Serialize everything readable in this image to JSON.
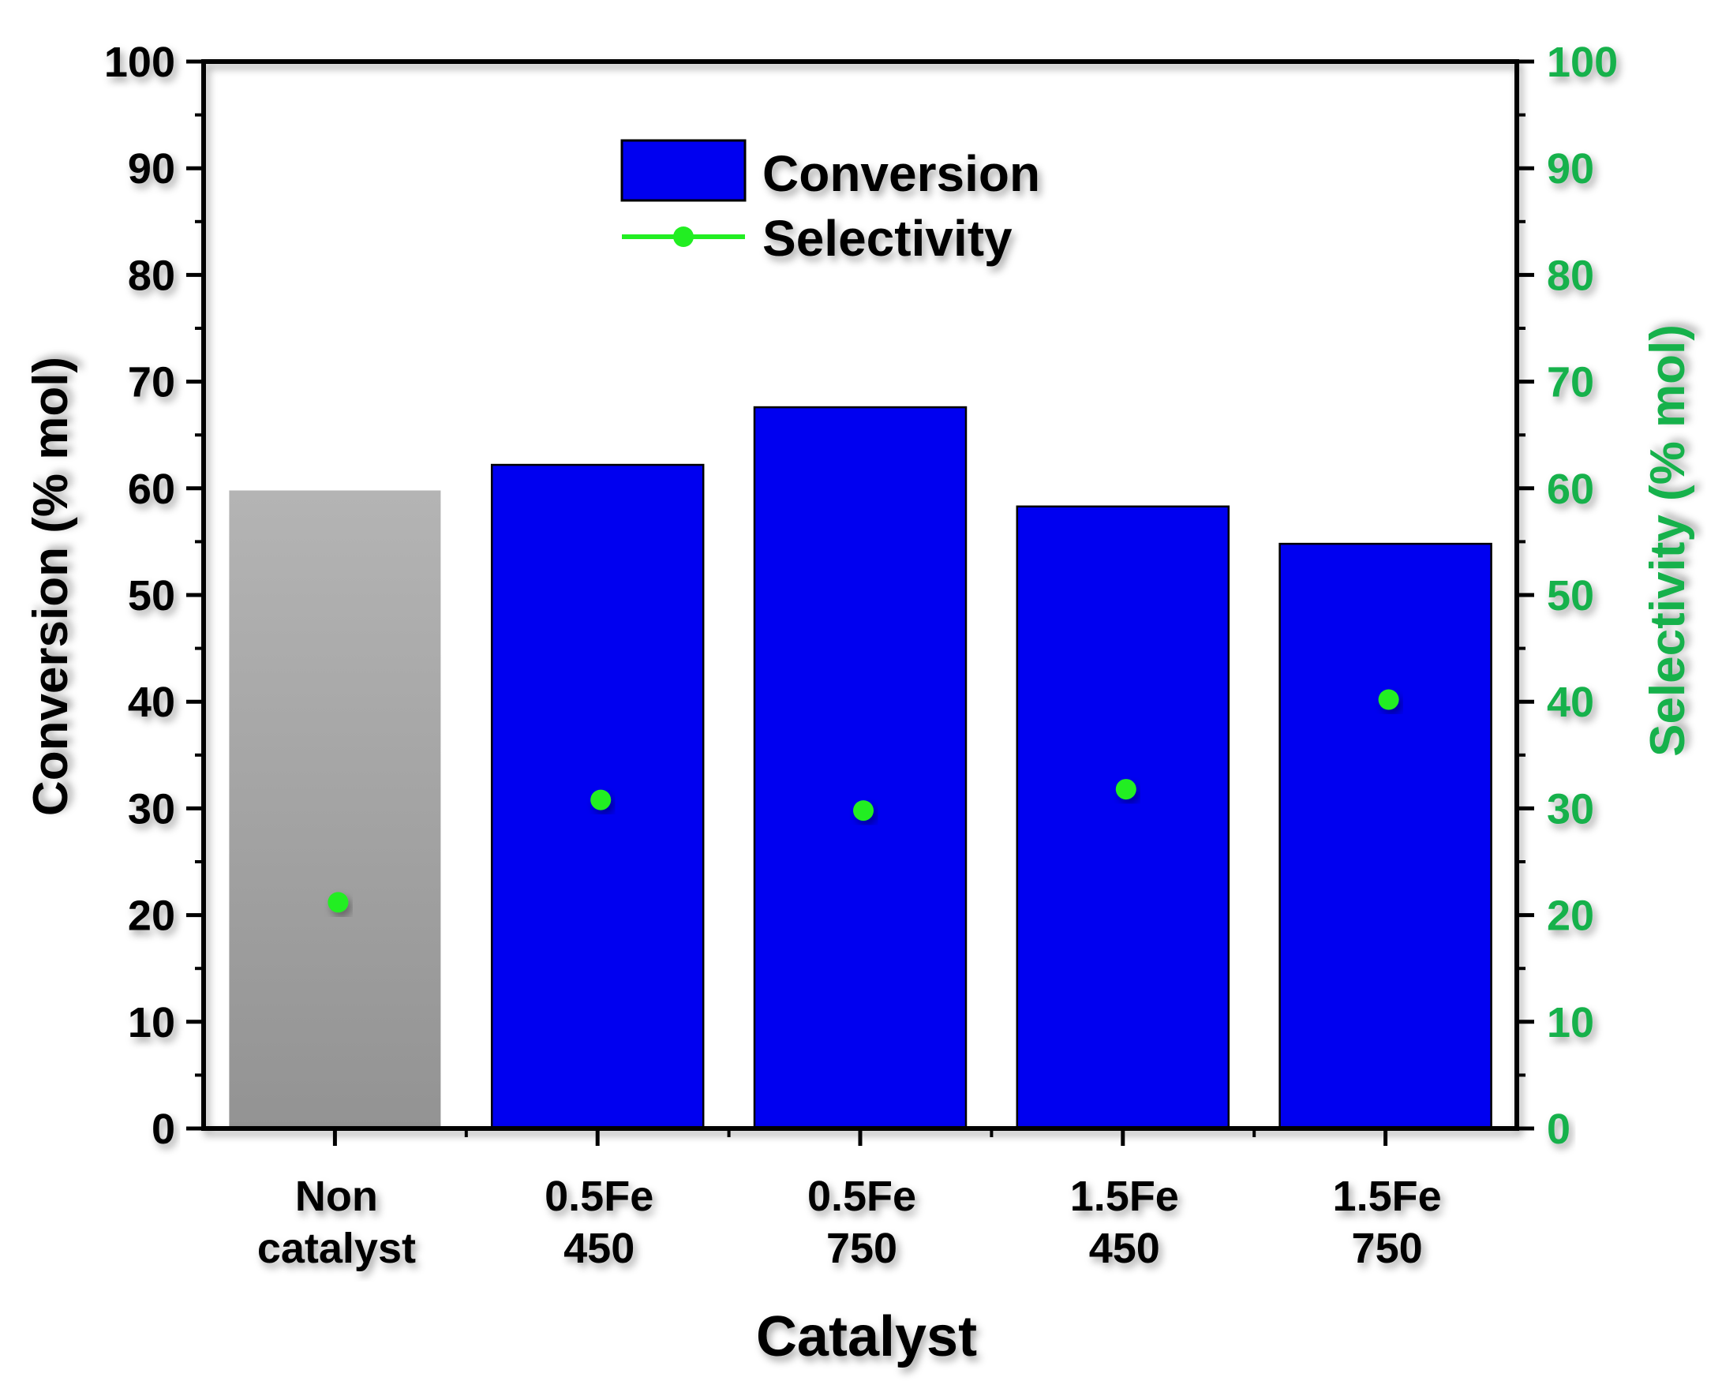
{
  "chart_data": {
    "type": "bar",
    "xlabel": "Catalyst",
    "ylabel": "Conversion (% mol)",
    "y2label": "Selectivity (% mol)",
    "ylim": [
      0,
      100
    ],
    "y2lim": [
      0,
      100
    ],
    "yticks": [
      0,
      10,
      20,
      30,
      40,
      50,
      60,
      70,
      80,
      90,
      100
    ],
    "grid": false,
    "legend_position": "top-center",
    "categories": [
      [
        "Non",
        "catalyst"
      ],
      [
        "0.5Fe",
        "450"
      ],
      [
        "0.5Fe",
        "750"
      ],
      [
        "1.5Fe",
        "450"
      ],
      [
        "1.5Fe",
        "750"
      ]
    ],
    "series": [
      {
        "name": "Conversion",
        "kind": "bar",
        "axis": "left",
        "color": "#0000f0",
        "values": [
          59.8,
          62.2,
          67.6,
          58.3,
          54.8
        ],
        "bar_colors": [
          "#a6a6a6",
          "#0000f0",
          "#0000f0",
          "#0000f0",
          "#0000f0"
        ]
      },
      {
        "name": "Selectivity",
        "kind": "points",
        "axis": "right",
        "color": "#22ee22",
        "values": [
          21.2,
          30.8,
          29.8,
          31.8,
          40.2
        ]
      }
    ],
    "colors": {
      "axis": "#000000",
      "right_axis": "#17b14b",
      "non_catalyst_bar": "#a6a6a6"
    }
  }
}
